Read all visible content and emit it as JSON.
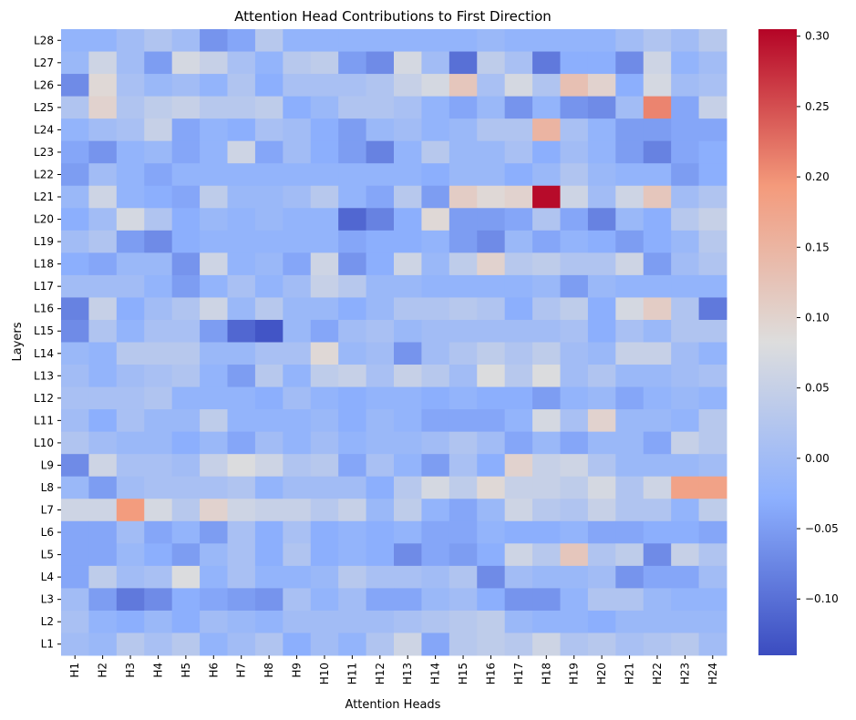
{
  "chart_data": {
    "type": "heatmap",
    "title": "Attention Head Contributions to First Direction",
    "xlabel": "Attention Heads",
    "ylabel": "Layers",
    "x_categories": [
      "H1",
      "H2",
      "H3",
      "H4",
      "H5",
      "H6",
      "H7",
      "H8",
      "H9",
      "H10",
      "H11",
      "H12",
      "H13",
      "H14",
      "H15",
      "H16",
      "H17",
      "H18",
      "H19",
      "H20",
      "H21",
      "H22",
      "H23",
      "H24"
    ],
    "y_categories": [
      "L28",
      "L27",
      "L26",
      "L25",
      "L24",
      "L23",
      "L22",
      "L21",
      "L20",
      "L19",
      "L18",
      "L17",
      "L16",
      "L15",
      "L14",
      "L13",
      "L12",
      "L11",
      "L10",
      "L9",
      "L8",
      "L7",
      "L6",
      "L5",
      "L4",
      "L3",
      "L2",
      "L1"
    ],
    "colormap": "coolwarm",
    "vmin": -0.14,
    "vmax": 0.305,
    "colorbar_ticks": [
      -0.1,
      -0.05,
      0.0,
      0.05,
      0.1,
      0.15,
      0.2,
      0.25,
      0.3
    ],
    "colorbar_tick_labels": [
      "−0.10",
      "−0.05",
      "0.00",
      "0.05",
      "0.10",
      "0.15",
      "0.20",
      "0.25",
      "0.30"
    ],
    "values": [
      [
        -0.02,
        -0.02,
        0.0,
        0.02,
        0.0,
        -0.06,
        -0.04,
        0.03,
        -0.02,
        -0.02,
        -0.02,
        -0.02,
        -0.02,
        -0.02,
        -0.02,
        -0.01,
        -0.02,
        -0.02,
        -0.02,
        -0.02,
        0.0,
        0.02,
        0.0,
        0.03
      ],
      [
        -0.01,
        0.06,
        0.0,
        -0.05,
        0.07,
        0.05,
        0.01,
        -0.02,
        0.03,
        0.04,
        -0.05,
        -0.07,
        0.07,
        0.0,
        -0.1,
        0.04,
        0.01,
        -0.09,
        -0.03,
        -0.03,
        -0.07,
        0.06,
        -0.02,
        0.0
      ],
      [
        -0.07,
        0.09,
        0.01,
        -0.01,
        0.0,
        -0.02,
        0.02,
        -0.03,
        0.01,
        0.01,
        0.01,
        0.02,
        0.05,
        0.07,
        0.12,
        0.01,
        0.07,
        0.02,
        0.13,
        0.1,
        -0.03,
        0.07,
        0.0,
        0.01
      ],
      [
        0.02,
        0.1,
        0.02,
        0.04,
        0.05,
        0.03,
        0.03,
        0.04,
        -0.03,
        -0.01,
        0.02,
        0.02,
        0.01,
        -0.02,
        -0.04,
        -0.01,
        -0.06,
        -0.02,
        -0.06,
        -0.07,
        0.0,
        0.21,
        -0.04,
        0.05
      ],
      [
        -0.02,
        0.0,
        0.01,
        0.05,
        -0.04,
        -0.02,
        -0.03,
        0.01,
        0.0,
        -0.03,
        -0.05,
        -0.01,
        0.0,
        -0.02,
        -0.01,
        0.02,
        0.02,
        0.15,
        0.01,
        -0.02,
        -0.05,
        -0.05,
        -0.04,
        -0.04
      ],
      [
        -0.04,
        -0.06,
        -0.02,
        -0.01,
        -0.04,
        -0.02,
        0.06,
        -0.04,
        0.0,
        -0.03,
        -0.05,
        -0.08,
        -0.02,
        0.03,
        -0.01,
        -0.01,
        0.01,
        -0.03,
        0.0,
        -0.02,
        -0.05,
        -0.08,
        -0.04,
        -0.03
      ],
      [
        -0.05,
        0.0,
        -0.02,
        -0.04,
        -0.02,
        -0.02,
        -0.02,
        -0.02,
        -0.02,
        -0.02,
        -0.02,
        -0.02,
        -0.02,
        -0.03,
        -0.01,
        -0.01,
        -0.03,
        -0.01,
        0.02,
        -0.01,
        -0.02,
        -0.02,
        -0.05,
        -0.03
      ],
      [
        -0.01,
        0.06,
        -0.02,
        -0.03,
        -0.04,
        0.04,
        -0.01,
        -0.01,
        0.0,
        0.03,
        -0.02,
        -0.04,
        0.03,
        -0.05,
        0.11,
        0.09,
        0.1,
        0.3,
        0.06,
        0.0,
        0.06,
        0.12,
        0.0,
        0.02
      ],
      [
        -0.03,
        0.0,
        0.07,
        0.02,
        -0.03,
        -0.01,
        -0.02,
        -0.01,
        -0.02,
        -0.02,
        -0.11,
        -0.08,
        -0.03,
        0.09,
        -0.05,
        -0.05,
        -0.04,
        0.02,
        -0.04,
        -0.08,
        -0.01,
        -0.03,
        0.03,
        0.05
      ],
      [
        0.0,
        0.02,
        -0.05,
        -0.07,
        -0.03,
        -0.02,
        -0.02,
        -0.02,
        -0.02,
        -0.02,
        -0.04,
        -0.03,
        -0.03,
        -0.02,
        -0.05,
        -0.07,
        -0.01,
        -0.04,
        -0.02,
        -0.03,
        -0.05,
        -0.03,
        -0.01,
        0.03
      ],
      [
        -0.03,
        -0.04,
        -0.01,
        -0.01,
        -0.06,
        0.06,
        -0.02,
        -0.01,
        -0.04,
        0.06,
        -0.06,
        -0.03,
        0.06,
        -0.01,
        0.04,
        0.1,
        0.03,
        0.04,
        0.02,
        0.02,
        0.06,
        -0.05,
        0.0,
        0.02
      ],
      [
        0.0,
        0.0,
        0.0,
        -0.02,
        -0.05,
        -0.02,
        0.01,
        -0.02,
        0.0,
        0.05,
        0.03,
        -0.01,
        -0.01,
        -0.02,
        -0.02,
        -0.02,
        -0.02,
        -0.01,
        -0.05,
        -0.01,
        -0.02,
        -0.02,
        -0.02,
        -0.02
      ],
      [
        -0.08,
        0.05,
        -0.03,
        0.0,
        0.02,
        0.06,
        -0.01,
        0.03,
        -0.01,
        -0.01,
        -0.03,
        -0.01,
        0.02,
        0.02,
        0.03,
        0.02,
        -0.03,
        0.02,
        0.04,
        -0.03,
        0.07,
        0.11,
        0.02,
        -0.09
      ],
      [
        -0.07,
        0.02,
        -0.02,
        0.01,
        0.01,
        -0.05,
        -0.11,
        -0.13,
        -0.01,
        -0.04,
        0.0,
        0.01,
        -0.01,
        0.0,
        0.0,
        0.0,
        0.0,
        0.0,
        0.01,
        -0.03,
        0.01,
        -0.01,
        0.02,
        0.02
      ],
      [
        -0.01,
        -0.02,
        0.03,
        0.03,
        0.03,
        -0.01,
        -0.01,
        0.01,
        0.01,
        0.09,
        -0.01,
        0.0,
        -0.06,
        0.0,
        0.02,
        0.04,
        0.02,
        0.04,
        0.0,
        -0.01,
        0.05,
        0.05,
        0.0,
        -0.02
      ],
      [
        0.0,
        -0.02,
        0.0,
        0.01,
        0.02,
        -0.02,
        -0.05,
        0.03,
        -0.02,
        0.04,
        0.05,
        0.01,
        0.05,
        0.03,
        0.0,
        0.08,
        0.03,
        0.08,
        0.0,
        0.02,
        -0.01,
        -0.01,
        0.0,
        0.01
      ],
      [
        0.01,
        0.01,
        0.01,
        0.02,
        -0.02,
        -0.02,
        -0.02,
        -0.03,
        0.0,
        -0.02,
        -0.03,
        -0.02,
        -0.02,
        -0.03,
        -0.02,
        -0.03,
        -0.03,
        -0.05,
        -0.02,
        -0.01,
        -0.04,
        -0.02,
        -0.01,
        -0.02
      ],
      [
        0.0,
        -0.03,
        0.01,
        -0.01,
        -0.01,
        0.04,
        -0.02,
        -0.02,
        -0.02,
        -0.01,
        -0.03,
        -0.01,
        -0.02,
        -0.04,
        -0.04,
        -0.04,
        -0.02,
        0.07,
        0.01,
        0.1,
        -0.01,
        -0.01,
        -0.02,
        0.03
      ],
      [
        0.02,
        0.0,
        -0.01,
        -0.01,
        -0.03,
        -0.01,
        -0.04,
        0.0,
        -0.02,
        0.0,
        -0.02,
        -0.01,
        -0.01,
        0.0,
        0.02,
        0.0,
        -0.04,
        -0.01,
        -0.04,
        -0.01,
        -0.01,
        -0.04,
        0.05,
        0.03
      ],
      [
        -0.07,
        0.06,
        0.01,
        0.01,
        0.0,
        0.05,
        0.08,
        0.06,
        0.02,
        0.03,
        -0.04,
        0.01,
        -0.02,
        -0.05,
        0.01,
        -0.03,
        0.1,
        0.05,
        0.06,
        0.02,
        -0.01,
        -0.01,
        -0.01,
        0.0
      ],
      [
        -0.01,
        -0.05,
        0.0,
        0.01,
        0.01,
        0.01,
        0.02,
        -0.02,
        0.0,
        0.0,
        0.0,
        -0.03,
        0.03,
        0.07,
        0.04,
        0.09,
        0.05,
        0.05,
        0.04,
        0.07,
        0.02,
        0.06,
        0.18,
        0.18
      ],
      [
        0.06,
        0.06,
        0.19,
        0.07,
        0.03,
        0.1,
        0.06,
        0.05,
        0.05,
        0.03,
        0.05,
        -0.01,
        0.04,
        -0.02,
        -0.04,
        -0.01,
        0.06,
        0.03,
        0.02,
        0.05,
        0.02,
        0.02,
        -0.02,
        0.04
      ],
      [
        -0.04,
        -0.04,
        0.0,
        -0.04,
        -0.02,
        -0.05,
        0.01,
        -0.03,
        0.01,
        -0.03,
        -0.02,
        -0.03,
        -0.02,
        -0.04,
        -0.04,
        -0.02,
        -0.03,
        -0.03,
        -0.02,
        -0.04,
        -0.04,
        -0.03,
        -0.03,
        -0.04
      ],
      [
        -0.04,
        -0.04,
        -0.01,
        -0.03,
        -0.05,
        -0.01,
        0.01,
        -0.03,
        0.02,
        -0.03,
        -0.02,
        -0.03,
        -0.07,
        -0.04,
        -0.05,
        -0.03,
        0.06,
        0.03,
        0.12,
        0.02,
        0.04,
        -0.07,
        0.05,
        0.02
      ],
      [
        -0.04,
        0.04,
        0.0,
        0.01,
        0.08,
        -0.02,
        0.01,
        -0.02,
        -0.02,
        -0.01,
        0.03,
        0.01,
        0.01,
        0.0,
        0.02,
        -0.07,
        0.0,
        -0.01,
        -0.01,
        0.0,
        -0.06,
        -0.04,
        -0.04,
        0.0
      ],
      [
        0.0,
        -0.05,
        -0.09,
        -0.07,
        -0.03,
        -0.04,
        -0.05,
        -0.06,
        0.01,
        -0.02,
        0.0,
        -0.04,
        -0.04,
        -0.01,
        0.0,
        -0.03,
        -0.06,
        -0.06,
        -0.02,
        0.02,
        0.02,
        -0.01,
        -0.02,
        -0.02
      ],
      [
        0.01,
        -0.02,
        -0.03,
        -0.01,
        -0.03,
        0.0,
        -0.01,
        -0.02,
        0.0,
        0.0,
        0.0,
        0.0,
        0.01,
        0.02,
        0.03,
        0.04,
        -0.01,
        -0.02,
        -0.02,
        -0.03,
        -0.01,
        -0.01,
        -0.01,
        -0.01
      ],
      [
        0.0,
        -0.01,
        0.03,
        0.01,
        0.03,
        -0.02,
        0.0,
        0.02,
        -0.03,
        0.0,
        -0.02,
        0.02,
        0.06,
        -0.04,
        0.03,
        0.04,
        0.03,
        0.06,
        0.02,
        0.03,
        0.01,
        0.02,
        0.03,
        0.0
      ]
    ]
  }
}
